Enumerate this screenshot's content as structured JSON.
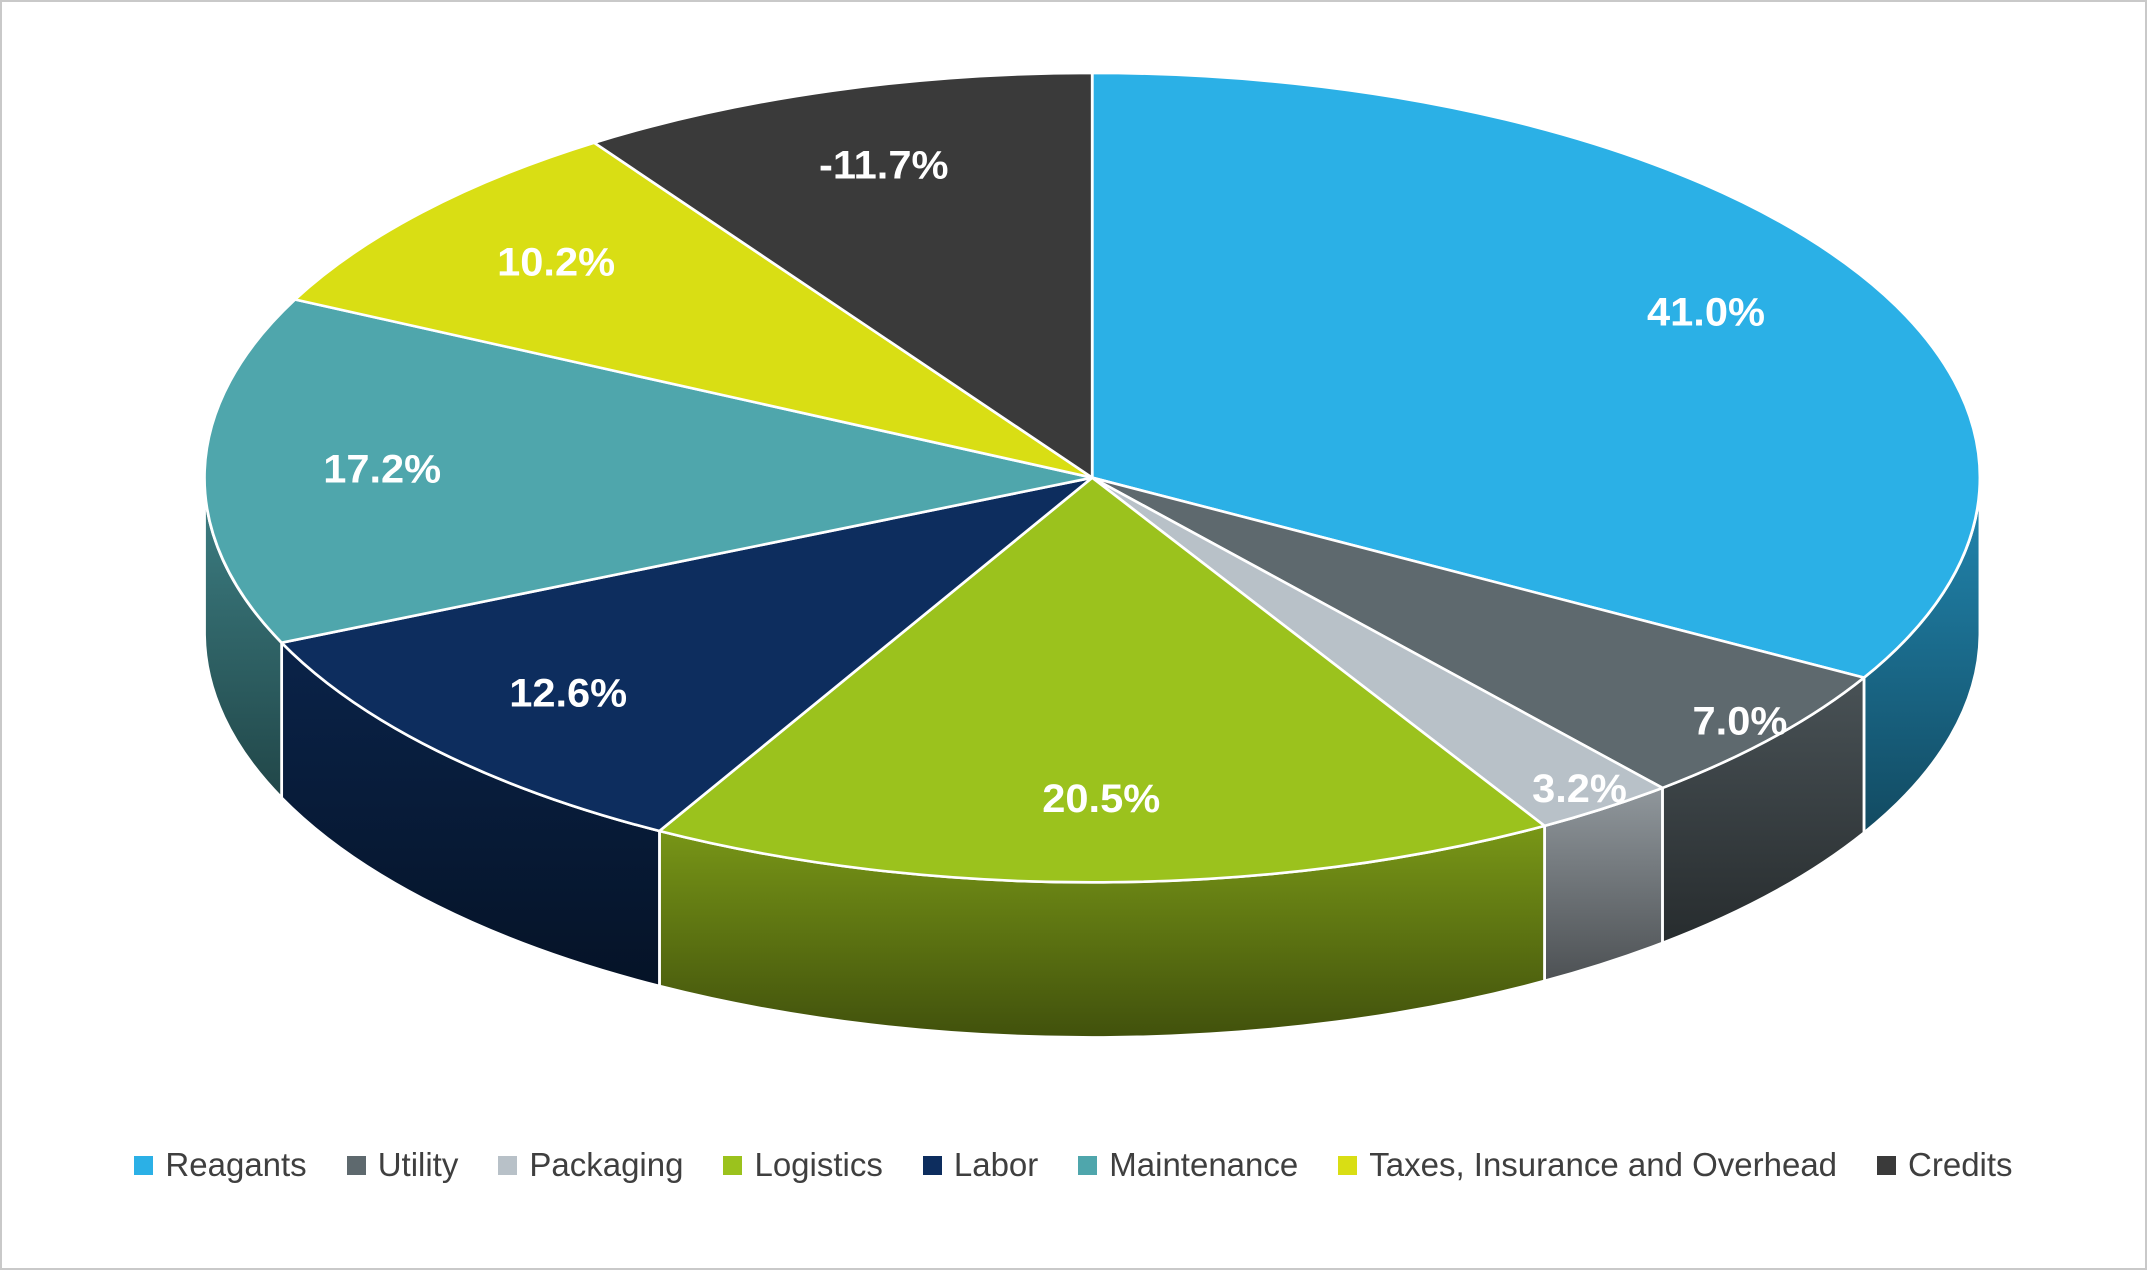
{
  "chart_data": {
    "type": "pie",
    "style": "3d",
    "start_angle_deg": 0,
    "direction": "clockwise",
    "legend_position": "bottom",
    "label_color": "#FFFFFF",
    "slices": [
      {
        "label": "Reagants",
        "value": 41.0,
        "display": "41.0%",
        "color": "#2BB0E6"
      },
      {
        "label": "Utility",
        "value": 7.0,
        "display": "7.0%",
        "color": "#5E696E"
      },
      {
        "label": "Packaging",
        "value": 3.2,
        "display": "3.2%",
        "color": "#B8C1C8"
      },
      {
        "label": "Logistics",
        "value": 20.5,
        "display": "20.5%",
        "color": "#9BC21D"
      },
      {
        "label": "Labor",
        "value": 12.6,
        "display": "12.6%",
        "color": "#0D2D5E"
      },
      {
        "label": "Maintenance",
        "value": 17.2,
        "display": "17.2%",
        "color": "#4FA6AC"
      },
      {
        "label": "Taxes, Insurance and Overhead",
        "value": 10.2,
        "display": "10.2%",
        "color": "#D9DE14"
      },
      {
        "label": "Credits",
        "value": -11.7,
        "display": "-11.7%",
        "color": "#3A3A3A"
      }
    ]
  }
}
